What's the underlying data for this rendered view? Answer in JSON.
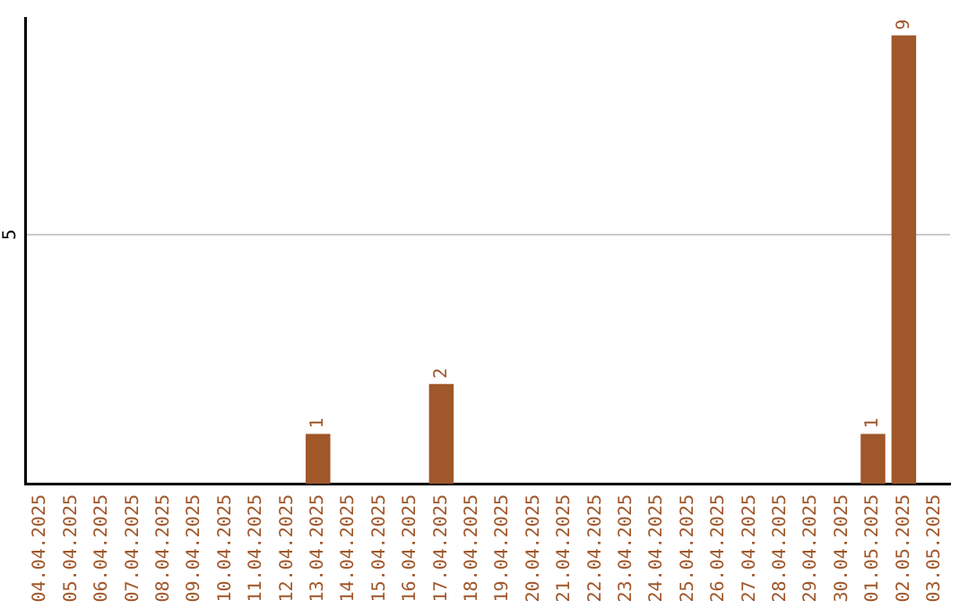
{
  "chart_data": {
    "type": "bar",
    "categories": [
      "04.04.2025",
      "05.04.2025",
      "06.04.2025",
      "07.04.2025",
      "08.04.2025",
      "09.04.2025",
      "10.04.2025",
      "11.04.2025",
      "12.04.2025",
      "13.04.2025",
      "14.04.2025",
      "15.04.2025",
      "16.04.2025",
      "17.04.2025",
      "18.04.2025",
      "19.04.2025",
      "20.04.2025",
      "21.04.2025",
      "22.04.2025",
      "23.04.2025",
      "24.04.2025",
      "25.04.2025",
      "26.04.2025",
      "27.04.2025",
      "28.04.2025",
      "29.04.2025",
      "30.04.2025",
      "01.05.2025",
      "02.05.2025",
      "03.05.2025"
    ],
    "values": [
      0,
      0,
      0,
      0,
      0,
      0,
      0,
      0,
      0,
      1,
      0,
      0,
      0,
      2,
      0,
      0,
      0,
      0,
      0,
      0,
      0,
      0,
      0,
      0,
      0,
      0,
      0,
      1,
      9,
      0
    ],
    "value_labels": [
      null,
      null,
      null,
      null,
      null,
      null,
      null,
      null,
      null,
      "1",
      null,
      null,
      null,
      "2",
      null,
      null,
      null,
      null,
      null,
      null,
      null,
      null,
      null,
      null,
      null,
      null,
      null,
      "1",
      "9",
      null
    ],
    "color": "#a0572a",
    "ylim": [
      0,
      9.35
    ],
    "yticks": [
      5
    ],
    "grid": "y"
  }
}
